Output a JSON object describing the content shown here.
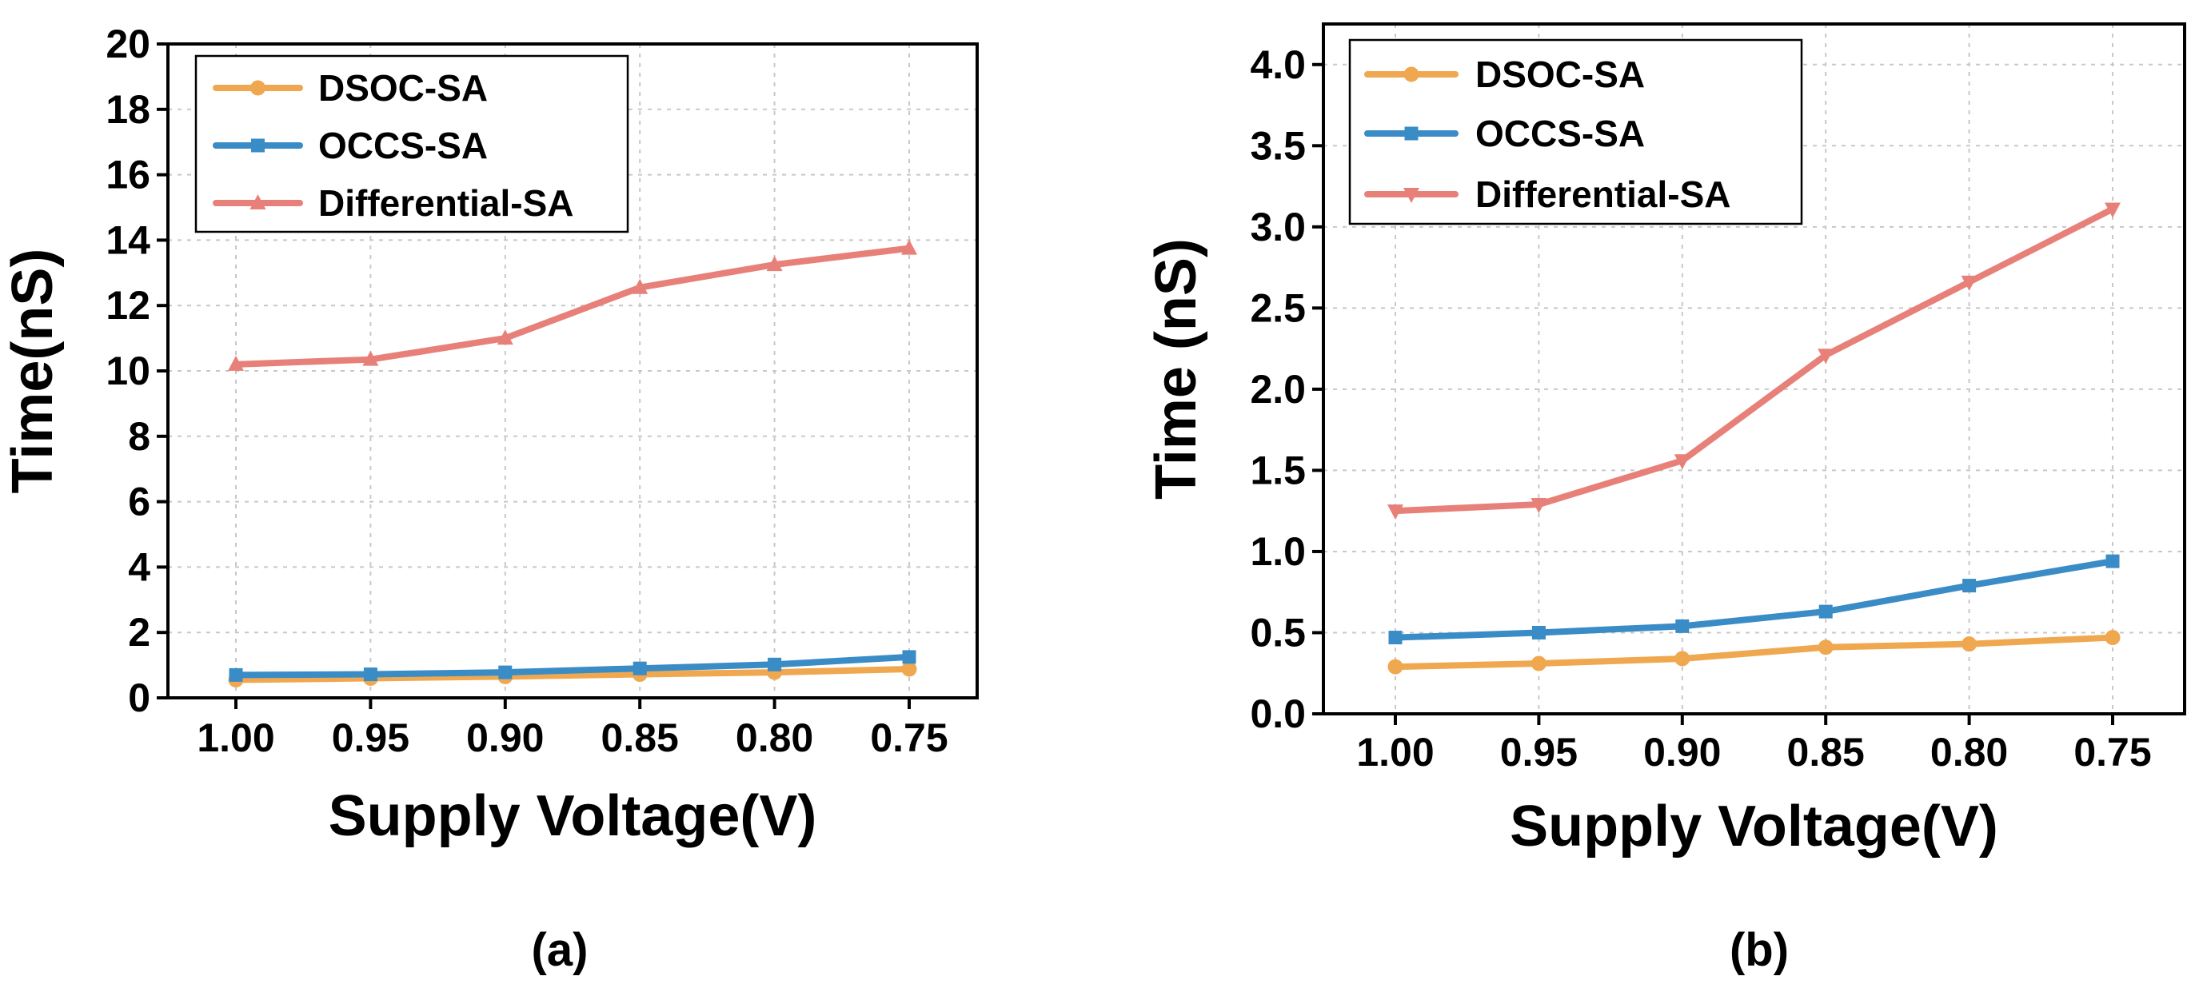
{
  "figure": {
    "panel_labels": [
      "(a)",
      "(b)"
    ]
  },
  "colors": {
    "dsoc": "#F0A850",
    "occs": "#3A8CC6",
    "diff": "#E8807A"
  },
  "chart_data": [
    {
      "type": "line",
      "panel": "(a)",
      "title": "",
      "xlabel": "Supply Voltage(V)",
      "ylabel": "Time(nS)",
      "categories": [
        "1.00",
        "0.95",
        "0.90",
        "0.85",
        "0.80",
        "0.75"
      ],
      "ylim": [
        0,
        20
      ],
      "yticks": [
        "0",
        "2",
        "4",
        "6",
        "8",
        "10",
        "12",
        "14",
        "16",
        "18",
        "20"
      ],
      "grid": true,
      "legend_position": "top-left",
      "series": [
        {
          "name": "DSOC-SA",
          "marker": "circle",
          "color": "#F0A850",
          "values": [
            0.55,
            0.6,
            0.65,
            0.72,
            0.78,
            0.88
          ]
        },
        {
          "name": "OCCS-SA",
          "marker": "square",
          "color": "#3A8CC6",
          "values": [
            0.7,
            0.72,
            0.78,
            0.9,
            1.02,
            1.25
          ]
        },
        {
          "name": "Differential-SA",
          "marker": "triangle-up",
          "color": "#E8807A",
          "values": [
            10.2,
            10.35,
            11.0,
            12.55,
            13.25,
            13.75
          ]
        }
      ]
    },
    {
      "type": "line",
      "panel": "(b)",
      "title": "",
      "xlabel": "Supply Voltage(V)",
      "ylabel": "Time (nS)",
      "categories": [
        "1.00",
        "0.95",
        "0.90",
        "0.85",
        "0.80",
        "0.75"
      ],
      "ylim": [
        0,
        4.25
      ],
      "yticks": [
        "0.0",
        "0.5",
        "1.0",
        "1.5",
        "2.0",
        "2.5",
        "3.0",
        "3.5",
        "4.0"
      ],
      "grid": true,
      "legend_position": "top-left",
      "series": [
        {
          "name": "DSOC-SA",
          "marker": "circle",
          "color": "#F0A850",
          "values": [
            0.29,
            0.31,
            0.34,
            0.41,
            0.43,
            0.47
          ]
        },
        {
          "name": "OCCS-SA",
          "marker": "square",
          "color": "#3A8CC6",
          "values": [
            0.47,
            0.5,
            0.54,
            0.63,
            0.79,
            0.94
          ]
        },
        {
          "name": "Differential-SA",
          "marker": "triangle-down",
          "color": "#E8807A",
          "values": [
            1.25,
            1.29,
            1.56,
            2.21,
            2.66,
            3.11
          ]
        }
      ]
    }
  ]
}
